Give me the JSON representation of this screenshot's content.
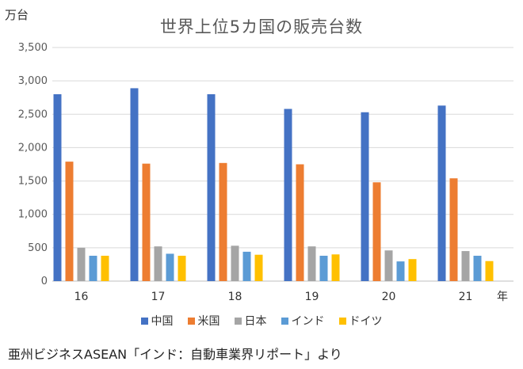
{
  "unit_label": "万台",
  "source": "亜州ビジネスASEAN「インド：自動車業界リポート」より",
  "colors": {
    "中国": "#4472C4",
    "米国": "#ED7D31",
    "日本": "#A5A5A5",
    "インド": "#5B9BD5",
    "ドイツ": "#FFC000",
    "grid": "#d9d9d9",
    "axis_text": "#595959"
  },
  "chart_data": {
    "type": "bar",
    "title": "世界上位5カ国の販売台数",
    "xlabel": "年",
    "ylabel": "万台",
    "categories": [
      "16",
      "17",
      "18",
      "19",
      "20",
      "21"
    ],
    "ylim": [
      0,
      3500
    ],
    "yticks": [
      0,
      500,
      1000,
      1500,
      2000,
      2500,
      3000,
      3500
    ],
    "ytick_labels": [
      "0",
      "500",
      "1,000",
      "1,500",
      "2,000",
      "2,500",
      "3,000",
      "3,500"
    ],
    "grid": true,
    "legend_position": "bottom",
    "series": [
      {
        "name": "中国",
        "values": [
          2800,
          2890,
          2800,
          2580,
          2530,
          2630
        ]
      },
      {
        "name": "米国",
        "values": [
          1790,
          1760,
          1770,
          1750,
          1480,
          1540
        ]
      },
      {
        "name": "日本",
        "values": [
          500,
          520,
          530,
          520,
          460,
          450
        ]
      },
      {
        "name": "インド",
        "values": [
          380,
          410,
          440,
          380,
          295,
          380
        ]
      },
      {
        "name": "ドイツ",
        "values": [
          380,
          380,
          395,
          400,
          330,
          300
        ]
      }
    ]
  }
}
